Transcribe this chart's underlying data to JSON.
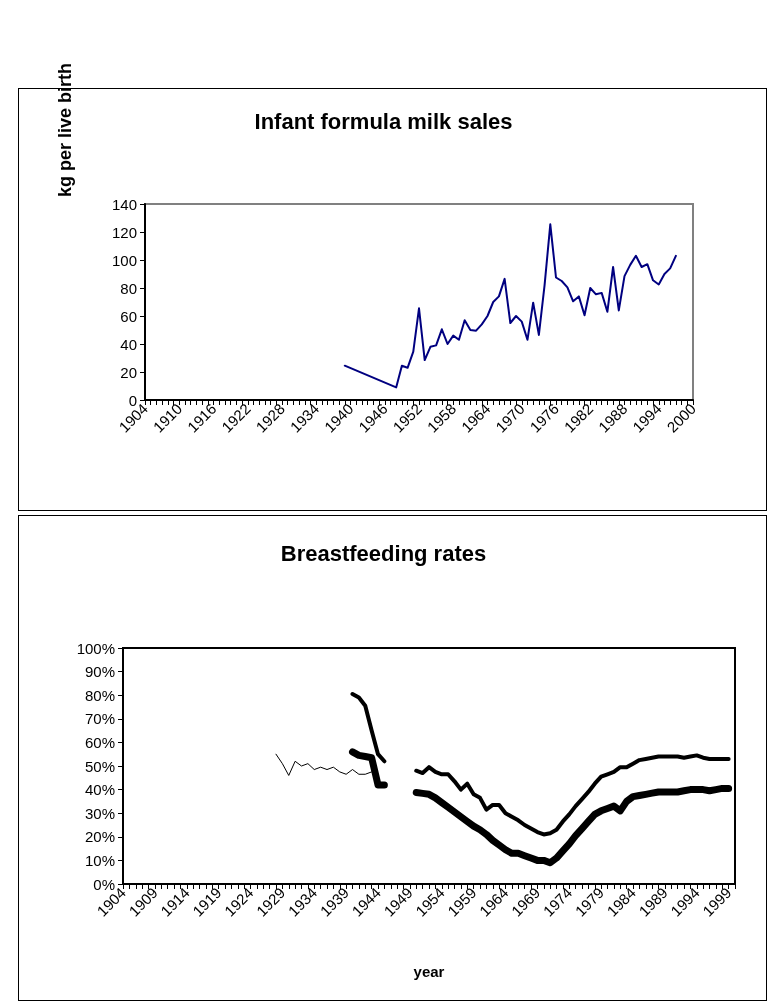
{
  "chart_data": [
    {
      "type": "line",
      "title": "Infant formula milk sales",
      "ylabel": "kg per live birth",
      "xlim": [
        1904,
        2000
      ],
      "ylim": [
        0,
        140
      ],
      "yticks": [
        0,
        20,
        40,
        60,
        80,
        100,
        120,
        140
      ],
      "xticks": [
        1904,
        {
          "value": 1905,
          "label": null
        },
        {
          "value": 1906,
          "label": null
        },
        {
          "value": 1907,
          "label": null
        },
        {
          "value": 1908,
          "label": null
        },
        {
          "value": 1909,
          "label": null
        },
        1910,
        {
          "value": 1911,
          "label": null
        },
        {
          "value": 1912,
          "label": null
        },
        {
          "value": 1913,
          "label": null
        },
        {
          "value": 1914,
          "label": null
        },
        {
          "value": 1915,
          "label": null
        },
        1916,
        {
          "value": 1917,
          "label": null
        },
        {
          "value": 1918,
          "label": null
        },
        {
          "value": 1919,
          "label": null
        },
        {
          "value": 1920,
          "label": null
        },
        {
          "value": 1921,
          "label": null
        },
        1922,
        {
          "value": 1923,
          "label": null
        },
        {
          "value": 1924,
          "label": null
        },
        {
          "value": 1925,
          "label": null
        },
        {
          "value": 1926,
          "label": null
        },
        {
          "value": 1927,
          "label": null
        },
        1928,
        {
          "value": 1929,
          "label": null
        },
        {
          "value": 1930,
          "label": null
        },
        {
          "value": 1931,
          "label": null
        },
        {
          "value": 1932,
          "label": null
        },
        {
          "value": 1933,
          "label": null
        },
        1934,
        {
          "value": 1935,
          "label": null
        },
        {
          "value": 1936,
          "label": null
        },
        {
          "value": 1937,
          "label": null
        },
        {
          "value": 1938,
          "label": null
        },
        {
          "value": 1939,
          "label": null
        },
        1940,
        {
          "value": 1941,
          "label": null
        },
        {
          "value": 1942,
          "label": null
        },
        {
          "value": 1943,
          "label": null
        },
        {
          "value": 1944,
          "label": null
        },
        {
          "value": 1945,
          "label": null
        },
        1946,
        {
          "value": 1947,
          "label": null
        },
        {
          "value": 1948,
          "label": null
        },
        {
          "value": 1949,
          "label": null
        },
        {
          "value": 1950,
          "label": null
        },
        {
          "value": 1951,
          "label": null
        },
        1952,
        {
          "value": 1953,
          "label": null
        },
        {
          "value": 1954,
          "label": null
        },
        {
          "value": 1955,
          "label": null
        },
        {
          "value": 1956,
          "label": null
        },
        {
          "value": 1957,
          "label": null
        },
        1958,
        {
          "value": 1959,
          "label": null
        },
        {
          "value": 1960,
          "label": null
        },
        {
          "value": 1961,
          "label": null
        },
        {
          "value": 1962,
          "label": null
        },
        {
          "value": 1963,
          "label": null
        },
        1964,
        {
          "value": 1965,
          "label": null
        },
        {
          "value": 1966,
          "label": null
        },
        {
          "value": 1967,
          "label": null
        },
        {
          "value": 1968,
          "label": null
        },
        {
          "value": 1969,
          "label": null
        },
        1970,
        {
          "value": 1971,
          "label": null
        },
        {
          "value": 1972,
          "label": null
        },
        {
          "value": 1973,
          "label": null
        },
        {
          "value": 1974,
          "label": null
        },
        {
          "value": 1975,
          "label": null
        },
        1976,
        {
          "value": 1977,
          "label": null
        },
        {
          "value": 1978,
          "label": null
        },
        {
          "value": 1979,
          "label": null
        },
        {
          "value": 1980,
          "label": null
        },
        {
          "value": 1981,
          "label": null
        },
        1982,
        {
          "value": 1983,
          "label": null
        },
        {
          "value": 1984,
          "label": null
        },
        {
          "value": 1985,
          "label": null
        },
        {
          "value": 1986,
          "label": null
        },
        {
          "value": 1987,
          "label": null
        },
        1988,
        {
          "value": 1989,
          "label": null
        },
        {
          "value": 1990,
          "label": null
        },
        {
          "value": 1991,
          "label": null
        },
        {
          "value": 1992,
          "label": null
        },
        {
          "value": 1993,
          "label": null
        },
        1994,
        {
          "value": 1995,
          "label": null
        },
        {
          "value": 1996,
          "label": null
        },
        {
          "value": 1997,
          "label": null
        },
        {
          "value": 1998,
          "label": null
        },
        {
          "value": 1999,
          "label": null
        },
        2000
      ],
      "grid": false,
      "marker": "none",
      "line_style": "solid",
      "series": [
        {
          "color": "#000080",
          "x": [
            1939,
            1948,
            1949,
            1950,
            1951,
            1952,
            1953,
            1954,
            1955,
            1956,
            1957,
            1958,
            1959,
            1960,
            1961,
            1962,
            1963,
            1964,
            1965,
            1966,
            1967,
            1968,
            1969,
            1970,
            1971,
            1972,
            1973,
            1974,
            1975,
            1976,
            1977,
            1978,
            1979,
            1980,
            1981,
            1982,
            1983,
            1984,
            1985,
            1986,
            1987,
            1988,
            1989,
            1990,
            1991,
            1992,
            1993,
            1994,
            1995,
            1996,
            1997
          ],
          "values": [
            24.5,
            9,
            24.5,
            23,
            34.5,
            65.5,
            28.5,
            38,
            39,
            50.5,
            40,
            46,
            43,
            57,
            50,
            49.5,
            54,
            60,
            70,
            74,
            86.5,
            55,
            60,
            56,
            43,
            69.5,
            46.5,
            82,
            125.5,
            87.5,
            85,
            80.5,
            70.5,
            74,
            60.5,
            80,
            75.5,
            76.5,
            63,
            95,
            64,
            88.5,
            96.5,
            103,
            95,
            97,
            85.5,
            82.5,
            90,
            94,
            103
          ]
        }
      ]
    },
    {
      "type": "line",
      "title": "Breastfeeding rates",
      "xlabel": "year",
      "xlim": [
        1904,
        2000
      ],
      "ylim": [
        0,
        100
      ],
      "yticks": [
        {
          "value": 0,
          "label": "0%"
        },
        {
          "value": 10,
          "label": "10%"
        },
        {
          "value": 20,
          "label": "20%"
        },
        {
          "value": 30,
          "label": "30%"
        },
        {
          "value": 40,
          "label": "40%"
        },
        {
          "value": 50,
          "label": "50%"
        },
        {
          "value": 60,
          "label": "60%"
        },
        {
          "value": 70,
          "label": "70%"
        },
        {
          "value": 80,
          "label": "80%"
        },
        {
          "value": 90,
          "label": "90%"
        },
        {
          "value": 100,
          "label": "100%"
        }
      ],
      "xticks": [
        1904,
        {
          "value": 1905,
          "label": null
        },
        {
          "value": 1906,
          "label": null
        },
        {
          "value": 1907,
          "label": null
        },
        {
          "value": 1908,
          "label": null
        },
        1909,
        {
          "value": 1910,
          "label": null
        },
        {
          "value": 1911,
          "label": null
        },
        {
          "value": 1912,
          "label": null
        },
        {
          "value": 1913,
          "label": null
        },
        1914,
        {
          "value": 1915,
          "label": null
        },
        {
          "value": 1916,
          "label": null
        },
        {
          "value": 1917,
          "label": null
        },
        {
          "value": 1918,
          "label": null
        },
        1919,
        {
          "value": 1920,
          "label": null
        },
        {
          "value": 1921,
          "label": null
        },
        {
          "value": 1922,
          "label": null
        },
        {
          "value": 1923,
          "label": null
        },
        1924,
        {
          "value": 1925,
          "label": null
        },
        {
          "value": 1926,
          "label": null
        },
        {
          "value": 1927,
          "label": null
        },
        {
          "value": 1928,
          "label": null
        },
        1929,
        {
          "value": 1930,
          "label": null
        },
        {
          "value": 1931,
          "label": null
        },
        {
          "value": 1932,
          "label": null
        },
        {
          "value": 1933,
          "label": null
        },
        1934,
        {
          "value": 1935,
          "label": null
        },
        {
          "value": 1936,
          "label": null
        },
        {
          "value": 1937,
          "label": null
        },
        {
          "value": 1938,
          "label": null
        },
        1939,
        {
          "value": 1940,
          "label": null
        },
        {
          "value": 1941,
          "label": null
        },
        {
          "value": 1942,
          "label": null
        },
        {
          "value": 1943,
          "label": null
        },
        1944,
        {
          "value": 1945,
          "label": null
        },
        {
          "value": 1946,
          "label": null
        },
        {
          "value": 1947,
          "label": null
        },
        {
          "value": 1948,
          "label": null
        },
        1949,
        {
          "value": 1950,
          "label": null
        },
        {
          "value": 1951,
          "label": null
        },
        {
          "value": 1952,
          "label": null
        },
        {
          "value": 1953,
          "label": null
        },
        1954,
        {
          "value": 1955,
          "label": null
        },
        {
          "value": 1956,
          "label": null
        },
        {
          "value": 1957,
          "label": null
        },
        {
          "value": 1958,
          "label": null
        },
        1959,
        {
          "value": 1960,
          "label": null
        },
        {
          "value": 1961,
          "label": null
        },
        {
          "value": 1962,
          "label": null
        },
        {
          "value": 1963,
          "label": null
        },
        1964,
        {
          "value": 1965,
          "label": null
        },
        {
          "value": 1966,
          "label": null
        },
        {
          "value": 1967,
          "label": null
        },
        {
          "value": 1968,
          "label": null
        },
        1969,
        {
          "value": 1970,
          "label": null
        },
        {
          "value": 1971,
          "label": null
        },
        {
          "value": 1972,
          "label": null
        },
        {
          "value": 1973,
          "label": null
        },
        1974,
        {
          "value": 1975,
          "label": null
        },
        {
          "value": 1976,
          "label": null
        },
        {
          "value": 1977,
          "label": null
        },
        {
          "value": 1978,
          "label": null
        },
        1979,
        {
          "value": 1980,
          "label": null
        },
        {
          "value": 1981,
          "label": null
        },
        {
          "value": 1982,
          "label": null
        },
        {
          "value": 1983,
          "label": null
        },
        1984,
        {
          "value": 1985,
          "label": null
        },
        {
          "value": 1986,
          "label": null
        },
        {
          "value": 1987,
          "label": null
        },
        {
          "value": 1988,
          "label": null
        },
        1989,
        {
          "value": 1990,
          "label": null
        },
        {
          "value": 1991,
          "label": null
        },
        {
          "value": 1992,
          "label": null
        },
        {
          "value": 1993,
          "label": null
        },
        1994,
        {
          "value": 1995,
          "label": null
        },
        {
          "value": 1996,
          "label": null
        },
        {
          "value": 1997,
          "label": null
        },
        {
          "value": 1998,
          "label": null
        },
        1999,
        {
          "value": 2000,
          "label": null
        }
      ],
      "grid": false,
      "marker": "none",
      "line_style": "solid",
      "series": [
        {
          "color": "#000000",
          "x": [
            1928,
            1929,
            1930,
            1931,
            1932,
            1933,
            1934,
            1935,
            1936,
            1937,
            1938,
            1939,
            1940,
            1941,
            1942,
            1943
          ],
          "values": [
            55,
            51,
            46,
            52,
            50,
            51,
            48.5,
            49.5,
            48.5,
            49.5,
            47.5,
            46.5,
            48.5,
            46.5,
            46.5,
            47.5
          ]
        },
        {
          "color": "#000000",
          "x": [
            1940,
            1941,
            1942,
            1943,
            1944,
            1945,
            1946,
            1950,
            1951,
            1952,
            1953,
            1954,
            1955,
            1956,
            1957,
            1958,
            1959,
            1960,
            1961,
            1962,
            1963,
            1964,
            1965,
            1966,
            1967,
            1968,
            1969,
            1970,
            1971,
            1972,
            1973,
            1974,
            1975,
            1976,
            1977,
            1978,
            1979,
            1980,
            1981,
            1982,
            1983,
            1984,
            1985,
            1986,
            1987,
            1988,
            1989,
            1990,
            1991,
            1992,
            1993,
            1994,
            1995,
            1996,
            1997,
            1998,
            1999
          ],
          "values": [
            80.5,
            79,
            75.5,
            65,
            55,
            52,
            null,
            48,
            47,
            49.5,
            47.5,
            46.5,
            46.5,
            43.5,
            40,
            42.5,
            38,
            36.5,
            31.5,
            33.5,
            33.5,
            30,
            28.5,
            27,
            25,
            23.5,
            22,
            21,
            21.5,
            23,
            26.5,
            29.5,
            33,
            36,
            39,
            42.5,
            45.5,
            46.5,
            47.5,
            49.5,
            49.5,
            51,
            52.5,
            53,
            53.5,
            54,
            54,
            54,
            54,
            53.5,
            54,
            54.5,
            53.5,
            53,
            53,
            53,
            53
          ]
        },
        {
          "color": "#000000",
          "x": [
            1940,
            1941,
            1942,
            1943,
            1944,
            1945,
            1946,
            1950,
            1951,
            1952,
            1953,
            1954,
            1955,
            1956,
            1957,
            1958,
            1959,
            1960,
            1961,
            1962,
            1963,
            1964,
            1965,
            1966,
            1967,
            1968,
            1969,
            1970,
            1971,
            1972,
            1973,
            1974,
            1975,
            1976,
            1977,
            1978,
            1979,
            1980,
            1981,
            1982,
            1983,
            1984,
            1985,
            1986,
            1987,
            1988,
            1989,
            1990,
            1991,
            1992,
            1993,
            1994,
            1995,
            1996,
            1997,
            1998,
            1999
          ],
          "values": [
            56,
            54.5,
            54,
            53.5,
            42,
            42,
            null,
            38.8,
            38.4,
            38,
            36.5,
            34.5,
            32.5,
            30.5,
            28.5,
            26.5,
            24.5,
            23,
            21,
            18.5,
            16.5,
            14.5,
            13,
            13,
            12,
            11,
            10,
            10,
            9,
            11,
            14,
            17,
            20.5,
            23.5,
            26.5,
            29.5,
            31,
            32,
            33,
            31,
            35,
            37,
            37.5,
            38,
            38.5,
            39,
            39,
            39,
            39,
            39.5,
            40,
            40,
            40,
            39.5,
            40,
            40.5,
            40.5
          ]
        }
      ]
    }
  ]
}
